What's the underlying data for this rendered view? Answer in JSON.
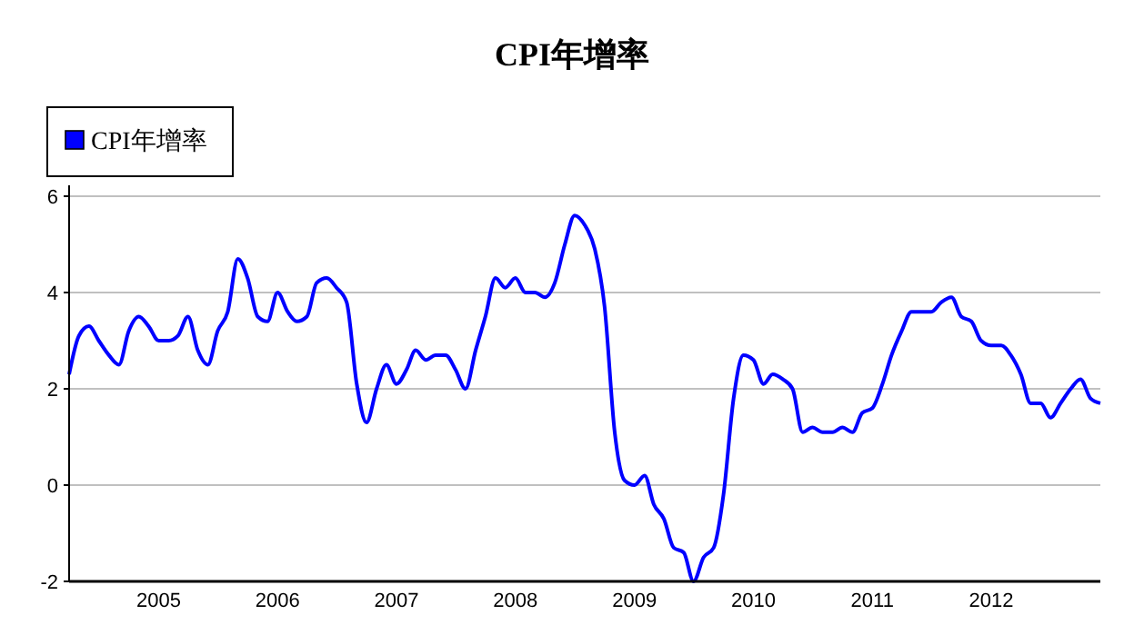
{
  "chart_data": {
    "type": "line",
    "title": "CPI年增率",
    "x": [
      "2004-04",
      "2004-05",
      "2004-06",
      "2004-07",
      "2004-08",
      "2004-09",
      "2004-10",
      "2004-11",
      "2004-12",
      "2005-01",
      "2005-02",
      "2005-03",
      "2005-04",
      "2005-05",
      "2005-06",
      "2005-07",
      "2005-08",
      "2005-09",
      "2005-10",
      "2005-11",
      "2005-12",
      "2006-01",
      "2006-02",
      "2006-03",
      "2006-04",
      "2006-05",
      "2006-06",
      "2006-07",
      "2006-08",
      "2006-09",
      "2006-10",
      "2006-11",
      "2006-12",
      "2007-01",
      "2007-02",
      "2007-03",
      "2007-04",
      "2007-05",
      "2007-06",
      "2007-07",
      "2007-08",
      "2007-09",
      "2007-10",
      "2007-11",
      "2007-12",
      "2008-01",
      "2008-02",
      "2008-03",
      "2008-04",
      "2008-05",
      "2008-06",
      "2008-07",
      "2008-08",
      "2008-09",
      "2008-10",
      "2008-11",
      "2008-12",
      "2009-01",
      "2009-02",
      "2009-03",
      "2009-04",
      "2009-05",
      "2009-06",
      "2009-07",
      "2009-08",
      "2009-09",
      "2009-10",
      "2009-11",
      "2009-12",
      "2010-01",
      "2010-02",
      "2010-03",
      "2010-04",
      "2010-05",
      "2010-06",
      "2010-07",
      "2010-08",
      "2010-09",
      "2010-10",
      "2010-11",
      "2010-12",
      "2011-01",
      "2011-02",
      "2011-03",
      "2011-04",
      "2011-05",
      "2011-06",
      "2011-07",
      "2011-08",
      "2011-09",
      "2011-10",
      "2011-11",
      "2011-12",
      "2012-01",
      "2012-02",
      "2012-03",
      "2012-04",
      "2012-05",
      "2012-06",
      "2012-07",
      "2012-08",
      "2012-09",
      "2012-10",
      "2012-11",
      "2012-12"
    ],
    "series": [
      {
        "name": "CPI年增率",
        "color": "#0000ff",
        "values": [
          2.3,
          3.1,
          3.3,
          3.0,
          2.7,
          2.5,
          3.2,
          3.5,
          3.3,
          3.0,
          3.0,
          3.1,
          3.5,
          2.8,
          2.5,
          3.2,
          3.6,
          4.7,
          4.3,
          3.5,
          3.4,
          4.0,
          3.6,
          3.4,
          3.5,
          4.2,
          4.3,
          4.1,
          3.8,
          2.1,
          1.3,
          2.0,
          2.5,
          2.1,
          2.4,
          2.8,
          2.6,
          2.7,
          2.7,
          2.4,
          2.0,
          2.8,
          3.5,
          4.3,
          4.1,
          4.3,
          4.0,
          4.0,
          3.9,
          4.2,
          5.0,
          5.6,
          5.4,
          4.9,
          3.7,
          1.1,
          0.1,
          0.0,
          0.2,
          -0.4,
          -0.7,
          -1.3,
          -1.4,
          -2.0,
          -1.5,
          -1.3,
          -0.2,
          1.8,
          2.7,
          2.6,
          2.1,
          2.3,
          2.2,
          2.0,
          1.1,
          1.2,
          1.1,
          1.1,
          1.2,
          1.1,
          1.5,
          1.6,
          2.1,
          2.7,
          3.2,
          3.6,
          3.6,
          3.6,
          3.8,
          3.9,
          3.5,
          3.4,
          3.0,
          2.9,
          2.9,
          2.7,
          2.3,
          1.7,
          1.7,
          1.4,
          1.7,
          2.0,
          2.2,
          1.8,
          1.7
        ]
      }
    ],
    "xlim": [
      "2004-04",
      "2012-12"
    ],
    "xticks": [
      "2005",
      "2006",
      "2007",
      "2008",
      "2009",
      "2010",
      "2011",
      "2012"
    ],
    "ylim": [
      -2,
      6
    ],
    "yticks": [
      -2,
      0,
      2,
      4,
      6
    ],
    "grid": "y",
    "legend": "top left",
    "line_style": "solid",
    "marker": "none"
  }
}
